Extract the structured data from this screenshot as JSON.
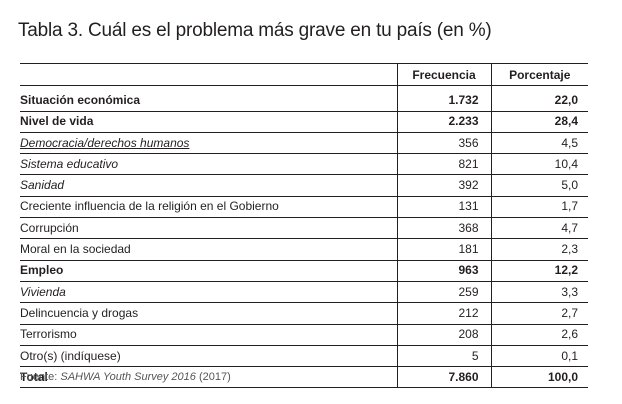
{
  "title": "Tabla 3. Cuál es el problema más grave en tu país (en %)",
  "headers": {
    "col1": "",
    "col2": "Frecuencia",
    "col3": "Porcentaje"
  },
  "rows": [
    {
      "label": "Situación económica",
      "freq": "1.732",
      "pct": "22,0"
    },
    {
      "label": "Nivel de vida",
      "freq": "2.233",
      "pct": "28,4"
    },
    {
      "label": "Democracia/derechos humanos",
      "freq": "356",
      "pct": "4,5"
    },
    {
      "label": "Sistema educativo",
      "freq": "821",
      "pct": "10,4"
    },
    {
      "label": "Sanidad",
      "freq": "392",
      "pct": "5,0"
    },
    {
      "label": "Creciente influencia de la religión en el Gobierno",
      "freq": "131",
      "pct": "1,7"
    },
    {
      "label": "Corrupción",
      "freq": "368",
      "pct": "4,7"
    },
    {
      "label": "Moral en la sociedad",
      "freq": "181",
      "pct": "2,3"
    },
    {
      "label": "Empleo",
      "freq": "963",
      "pct": "12,2"
    },
    {
      "label": "Vivienda",
      "freq": "259",
      "pct": "3,3"
    },
    {
      "label": "Delincuencia y drogas",
      "freq": "212",
      "pct": "2,7"
    },
    {
      "label": "Terrorismo",
      "freq": "208",
      "pct": "2,6"
    },
    {
      "label": "Otro(s) (indíquese)",
      "freq": "5",
      "pct": "0,1"
    },
    {
      "label": "Total",
      "freq": "7.860",
      "pct": "100,0"
    }
  ],
  "source": {
    "prefix": "Fuente: ",
    "name": "SAHWA Youth Survey 2016",
    "suffix": " (2017)"
  }
}
